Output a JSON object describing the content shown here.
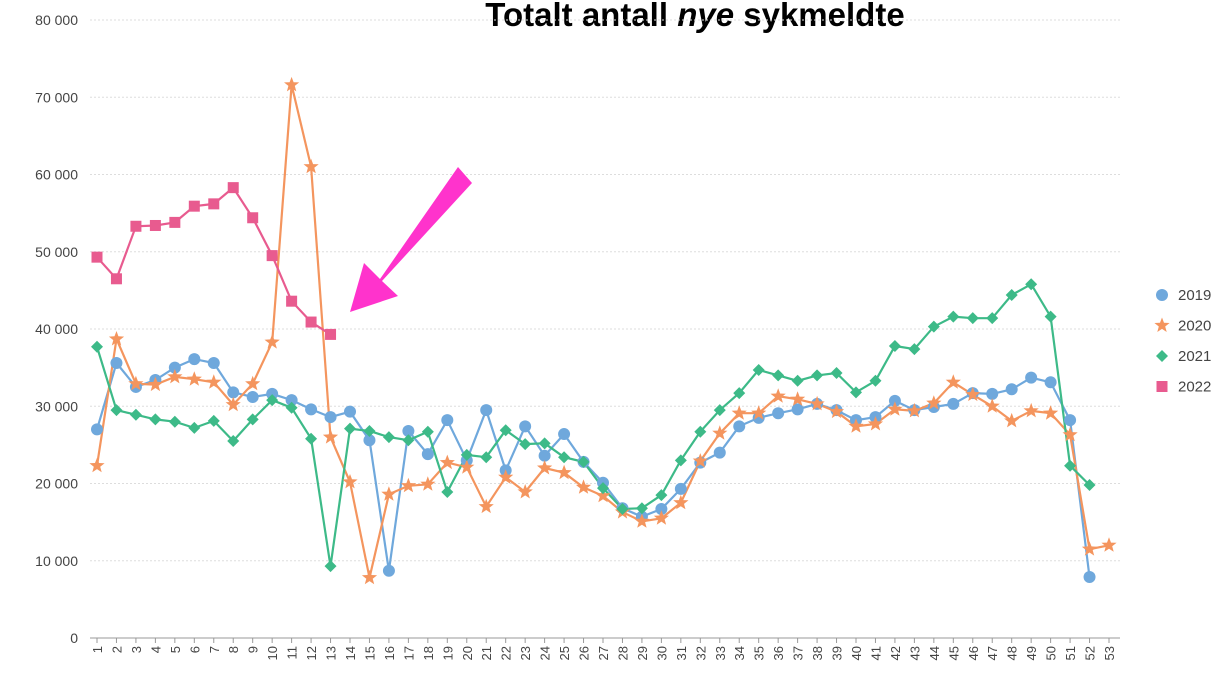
{
  "chart_data": {
    "type": "line",
    "title_parts": [
      "Totalt antall",
      "nye",
      "sykmeldte"
    ],
    "categories": [
      "1",
      "2",
      "3",
      "4",
      "5",
      "6",
      "7",
      "8",
      "9",
      "10",
      "11",
      "12",
      "13",
      "14",
      "15",
      "16",
      "17",
      "18",
      "19",
      "20",
      "21",
      "22",
      "23",
      "24",
      "25",
      "26",
      "27",
      "28",
      "29",
      "30",
      "31",
      "32",
      "33",
      "34",
      "35",
      "36",
      "37",
      "38",
      "39",
      "40",
      "41",
      "42",
      "43",
      "44",
      "45",
      "46",
      "47",
      "48",
      "49",
      "50",
      "51",
      "52",
      "53"
    ],
    "ylim": [
      0,
      80000
    ],
    "yticks": [
      {
        "value": 0,
        "label": "0"
      },
      {
        "value": 10000,
        "label": "10 000"
      },
      {
        "value": 20000,
        "label": "20 000"
      },
      {
        "value": 30000,
        "label": "30 000"
      },
      {
        "value": 40000,
        "label": "40 000"
      },
      {
        "value": 50000,
        "label": "50 000"
      },
      {
        "value": 60000,
        "label": "60 000"
      },
      {
        "value": 70000,
        "label": "70 000"
      },
      {
        "value": 80000,
        "label": "80 000"
      }
    ],
    "grid": true,
    "legend": "right",
    "series": [
      {
        "name": "2019",
        "color": "#6fa8dc",
        "marker": "circle",
        "values": [
          27000,
          35600,
          32500,
          33400,
          35000,
          36100,
          35600,
          31800,
          31200,
          31600,
          30800,
          29600,
          28600,
          29300,
          25600,
          8700,
          26800,
          23800,
          28200,
          23000,
          29500,
          21700,
          27400,
          23600,
          26400,
          22800,
          20100,
          16800,
          15700,
          16700,
          19300,
          22700,
          24000,
          27400,
          28500,
          29100,
          29600,
          30300,
          29500,
          28200,
          28600,
          30700,
          29500,
          29900,
          30300,
          31700,
          31600,
          32200,
          33700,
          33100,
          28200,
          7900,
          null
        ]
      },
      {
        "name": "2020",
        "color": "#f4955e",
        "marker": "star",
        "values": [
          22300,
          38700,
          32900,
          32800,
          33800,
          33500,
          33100,
          30200,
          32900,
          38300,
          71600,
          61000,
          26000,
          20200,
          7800,
          18600,
          19700,
          19900,
          22700,
          22100,
          17000,
          20800,
          18900,
          22000,
          21400,
          19500,
          18400,
          16300,
          15100,
          15500,
          17500,
          22900,
          26500,
          29100,
          29100,
          31300,
          30900,
          30300,
          29300,
          27400,
          27700,
          29600,
          29400,
          30400,
          33100,
          31500,
          30000,
          28100,
          29400,
          29100,
          26300,
          11500,
          12000
        ]
      },
      {
        "name": "2021",
        "color": "#3dba88",
        "marker": "diamond",
        "values": [
          37700,
          29500,
          28900,
          28300,
          28000,
          27200,
          28100,
          25500,
          28300,
          30800,
          29800,
          25800,
          9300,
          27100,
          26800,
          26000,
          25600,
          26700,
          18900,
          23700,
          23400,
          26900,
          25100,
          25200,
          23400,
          22800,
          19400,
          16700,
          16800,
          18500,
          23000,
          26700,
          29500,
          31700,
          34700,
          34000,
          33300,
          34000,
          34300,
          31800,
          33300,
          37800,
          37400,
          40300,
          41600,
          41400,
          41400,
          44400,
          45800,
          41600,
          22300,
          19800,
          null
        ]
      },
      {
        "name": "2022",
        "color": "#e85b8f",
        "marker": "square",
        "values": [
          49300,
          46500,
          53300,
          53400,
          53800,
          55900,
          56200,
          58300,
          54400,
          49500,
          43600,
          40900,
          39300,
          null,
          null,
          null,
          null,
          null,
          null,
          null,
          null,
          null,
          null,
          null,
          null,
          null,
          null,
          null,
          null,
          null,
          null,
          null,
          null,
          null,
          null,
          null,
          null,
          null,
          null,
          null,
          null,
          null,
          null,
          null,
          null,
          null,
          null,
          null,
          null,
          null,
          null,
          null,
          null
        ]
      }
    ]
  }
}
